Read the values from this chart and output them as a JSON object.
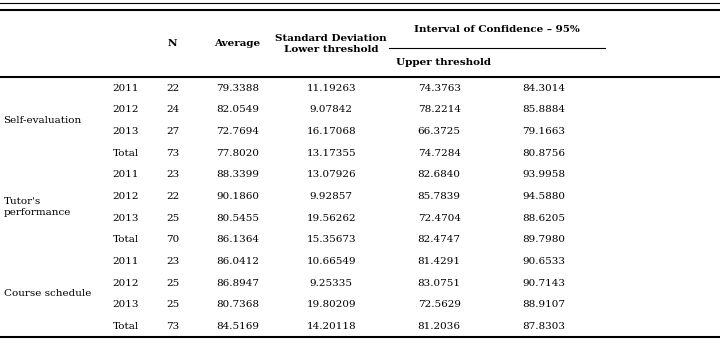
{
  "rows": [
    [
      "Self-evaluation",
      "2011",
      "22",
      "79.3388",
      "11.19263",
      "74.3763",
      "84.3014"
    ],
    [
      "",
      "2012",
      "24",
      "82.0549",
      "9.07842",
      "78.2214",
      "85.8884"
    ],
    [
      "",
      "2013",
      "27",
      "72.7694",
      "16.17068",
      "66.3725",
      "79.1663"
    ],
    [
      "",
      "Total",
      "73",
      "77.8020",
      "13.17355",
      "74.7284",
      "80.8756"
    ],
    [
      "Tutor's\nperformance",
      "2011",
      "23",
      "88.3399",
      "13.07926",
      "82.6840",
      "93.9958"
    ],
    [
      "",
      "2012",
      "22",
      "90.1860",
      "9.92857",
      "85.7839",
      "94.5880"
    ],
    [
      "",
      "2013",
      "25",
      "80.5455",
      "19.56262",
      "72.4704",
      "88.6205"
    ],
    [
      "",
      "Total",
      "70",
      "86.1364",
      "15.35673",
      "82.4747",
      "89.7980"
    ],
    [
      "Course schedule",
      "2011",
      "23",
      "86.0412",
      "10.66549",
      "81.4291",
      "90.6533"
    ],
    [
      "",
      "2012",
      "25",
      "86.8947",
      "9.25335",
      "83.0751",
      "90.7143"
    ],
    [
      "",
      "2013",
      "25",
      "80.7368",
      "19.80209",
      "72.5629",
      "88.9107"
    ],
    [
      "",
      "Total",
      "73",
      "84.5169",
      "14.20118",
      "81.2036",
      "87.8303"
    ]
  ],
  "background_color": "#ffffff",
  "text_color": "#000000",
  "font_size": 7.5
}
